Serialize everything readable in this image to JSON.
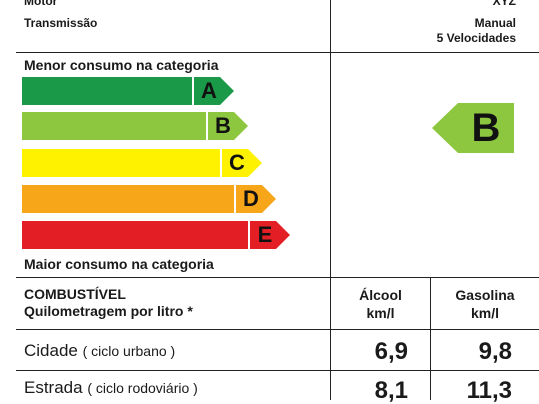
{
  "header": {
    "motor_label": "Motor",
    "motor_value": "XYZ",
    "transmission_label": "Transmissão",
    "transmission_value_line1": "Manual",
    "transmission_value_line2": "5 Velocidades"
  },
  "scale": {
    "top_label": "Menor consumo na categoria",
    "bottom_label": "Maior consumo na categoria",
    "bars": [
      {
        "letter": "A",
        "color": "#1a9a48"
      },
      {
        "letter": "B",
        "color": "#8dc63f"
      },
      {
        "letter": "C",
        "color": "#fff200"
      },
      {
        "letter": "D",
        "color": "#f7a619"
      },
      {
        "letter": "E",
        "color": "#e31e24"
      }
    ]
  },
  "rating": {
    "letter": "B",
    "color": "#8dc63f"
  },
  "table": {
    "title": "COMBUSTÍVEL",
    "subtitle": "Quilometragem por litro *",
    "col_alcool_line1": "Álcool",
    "col_alcool_line2": "km/l",
    "col_gasolina_line1": "Gasolina",
    "col_gasolina_line2": "km/l",
    "rows": [
      {
        "label": "Cidade",
        "note": "( ciclo urbano )",
        "alcool": "6,9",
        "gasolina": "9,8"
      },
      {
        "label": "Estrada",
        "note": "( ciclo rodoviário )",
        "alcool": "8,1",
        "gasolina": "11,3"
      }
    ]
  }
}
